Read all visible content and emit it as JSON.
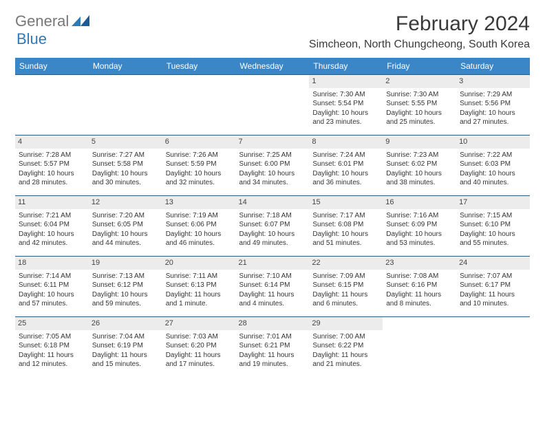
{
  "logo": {
    "general": "General",
    "blue": "Blue"
  },
  "title": "February 2024",
  "location": "Simcheon, North Chungcheong, South Korea",
  "colors": {
    "header_bg": "#3b86c6",
    "header_text": "#ffffff",
    "cell_border": "#2a5c8a",
    "daynum_bg": "#ececec",
    "logo_general": "#777777",
    "logo_blue": "#2f79b7"
  },
  "daysOfWeek": [
    "Sunday",
    "Monday",
    "Tuesday",
    "Wednesday",
    "Thursday",
    "Friday",
    "Saturday"
  ],
  "weeks": [
    [
      {
        "n": "",
        "sr": "",
        "ss": "",
        "d1": "",
        "d2": "",
        "empty": true
      },
      {
        "n": "",
        "sr": "",
        "ss": "",
        "d1": "",
        "d2": "",
        "empty": true
      },
      {
        "n": "",
        "sr": "",
        "ss": "",
        "d1": "",
        "d2": "",
        "empty": true
      },
      {
        "n": "",
        "sr": "",
        "ss": "",
        "d1": "",
        "d2": "",
        "empty": true
      },
      {
        "n": "1",
        "sr": "Sunrise: 7:30 AM",
        "ss": "Sunset: 5:54 PM",
        "d1": "Daylight: 10 hours",
        "d2": "and 23 minutes."
      },
      {
        "n": "2",
        "sr": "Sunrise: 7:30 AM",
        "ss": "Sunset: 5:55 PM",
        "d1": "Daylight: 10 hours",
        "d2": "and 25 minutes."
      },
      {
        "n": "3",
        "sr": "Sunrise: 7:29 AM",
        "ss": "Sunset: 5:56 PM",
        "d1": "Daylight: 10 hours",
        "d2": "and 27 minutes."
      }
    ],
    [
      {
        "n": "4",
        "sr": "Sunrise: 7:28 AM",
        "ss": "Sunset: 5:57 PM",
        "d1": "Daylight: 10 hours",
        "d2": "and 28 minutes."
      },
      {
        "n": "5",
        "sr": "Sunrise: 7:27 AM",
        "ss": "Sunset: 5:58 PM",
        "d1": "Daylight: 10 hours",
        "d2": "and 30 minutes."
      },
      {
        "n": "6",
        "sr": "Sunrise: 7:26 AM",
        "ss": "Sunset: 5:59 PM",
        "d1": "Daylight: 10 hours",
        "d2": "and 32 minutes."
      },
      {
        "n": "7",
        "sr": "Sunrise: 7:25 AM",
        "ss": "Sunset: 6:00 PM",
        "d1": "Daylight: 10 hours",
        "d2": "and 34 minutes."
      },
      {
        "n": "8",
        "sr": "Sunrise: 7:24 AM",
        "ss": "Sunset: 6:01 PM",
        "d1": "Daylight: 10 hours",
        "d2": "and 36 minutes."
      },
      {
        "n": "9",
        "sr": "Sunrise: 7:23 AM",
        "ss": "Sunset: 6:02 PM",
        "d1": "Daylight: 10 hours",
        "d2": "and 38 minutes."
      },
      {
        "n": "10",
        "sr": "Sunrise: 7:22 AM",
        "ss": "Sunset: 6:03 PM",
        "d1": "Daylight: 10 hours",
        "d2": "and 40 minutes."
      }
    ],
    [
      {
        "n": "11",
        "sr": "Sunrise: 7:21 AM",
        "ss": "Sunset: 6:04 PM",
        "d1": "Daylight: 10 hours",
        "d2": "and 42 minutes."
      },
      {
        "n": "12",
        "sr": "Sunrise: 7:20 AM",
        "ss": "Sunset: 6:05 PM",
        "d1": "Daylight: 10 hours",
        "d2": "and 44 minutes."
      },
      {
        "n": "13",
        "sr": "Sunrise: 7:19 AM",
        "ss": "Sunset: 6:06 PM",
        "d1": "Daylight: 10 hours",
        "d2": "and 46 minutes."
      },
      {
        "n": "14",
        "sr": "Sunrise: 7:18 AM",
        "ss": "Sunset: 6:07 PM",
        "d1": "Daylight: 10 hours",
        "d2": "and 49 minutes."
      },
      {
        "n": "15",
        "sr": "Sunrise: 7:17 AM",
        "ss": "Sunset: 6:08 PM",
        "d1": "Daylight: 10 hours",
        "d2": "and 51 minutes."
      },
      {
        "n": "16",
        "sr": "Sunrise: 7:16 AM",
        "ss": "Sunset: 6:09 PM",
        "d1": "Daylight: 10 hours",
        "d2": "and 53 minutes."
      },
      {
        "n": "17",
        "sr": "Sunrise: 7:15 AM",
        "ss": "Sunset: 6:10 PM",
        "d1": "Daylight: 10 hours",
        "d2": "and 55 minutes."
      }
    ],
    [
      {
        "n": "18",
        "sr": "Sunrise: 7:14 AM",
        "ss": "Sunset: 6:11 PM",
        "d1": "Daylight: 10 hours",
        "d2": "and 57 minutes."
      },
      {
        "n": "19",
        "sr": "Sunrise: 7:13 AM",
        "ss": "Sunset: 6:12 PM",
        "d1": "Daylight: 10 hours",
        "d2": "and 59 minutes."
      },
      {
        "n": "20",
        "sr": "Sunrise: 7:11 AM",
        "ss": "Sunset: 6:13 PM",
        "d1": "Daylight: 11 hours",
        "d2": "and 1 minute."
      },
      {
        "n": "21",
        "sr": "Sunrise: 7:10 AM",
        "ss": "Sunset: 6:14 PM",
        "d1": "Daylight: 11 hours",
        "d2": "and 4 minutes."
      },
      {
        "n": "22",
        "sr": "Sunrise: 7:09 AM",
        "ss": "Sunset: 6:15 PM",
        "d1": "Daylight: 11 hours",
        "d2": "and 6 minutes."
      },
      {
        "n": "23",
        "sr": "Sunrise: 7:08 AM",
        "ss": "Sunset: 6:16 PM",
        "d1": "Daylight: 11 hours",
        "d2": "and 8 minutes."
      },
      {
        "n": "24",
        "sr": "Sunrise: 7:07 AM",
        "ss": "Sunset: 6:17 PM",
        "d1": "Daylight: 11 hours",
        "d2": "and 10 minutes."
      }
    ],
    [
      {
        "n": "25",
        "sr": "Sunrise: 7:05 AM",
        "ss": "Sunset: 6:18 PM",
        "d1": "Daylight: 11 hours",
        "d2": "and 12 minutes."
      },
      {
        "n": "26",
        "sr": "Sunrise: 7:04 AM",
        "ss": "Sunset: 6:19 PM",
        "d1": "Daylight: 11 hours",
        "d2": "and 15 minutes."
      },
      {
        "n": "27",
        "sr": "Sunrise: 7:03 AM",
        "ss": "Sunset: 6:20 PM",
        "d1": "Daylight: 11 hours",
        "d2": "and 17 minutes."
      },
      {
        "n": "28",
        "sr": "Sunrise: 7:01 AM",
        "ss": "Sunset: 6:21 PM",
        "d1": "Daylight: 11 hours",
        "d2": "and 19 minutes."
      },
      {
        "n": "29",
        "sr": "Sunrise: 7:00 AM",
        "ss": "Sunset: 6:22 PM",
        "d1": "Daylight: 11 hours",
        "d2": "and 21 minutes."
      },
      {
        "n": "",
        "sr": "",
        "ss": "",
        "d1": "",
        "d2": "",
        "empty": true
      },
      {
        "n": "",
        "sr": "",
        "ss": "",
        "d1": "",
        "d2": "",
        "empty": true
      }
    ]
  ]
}
